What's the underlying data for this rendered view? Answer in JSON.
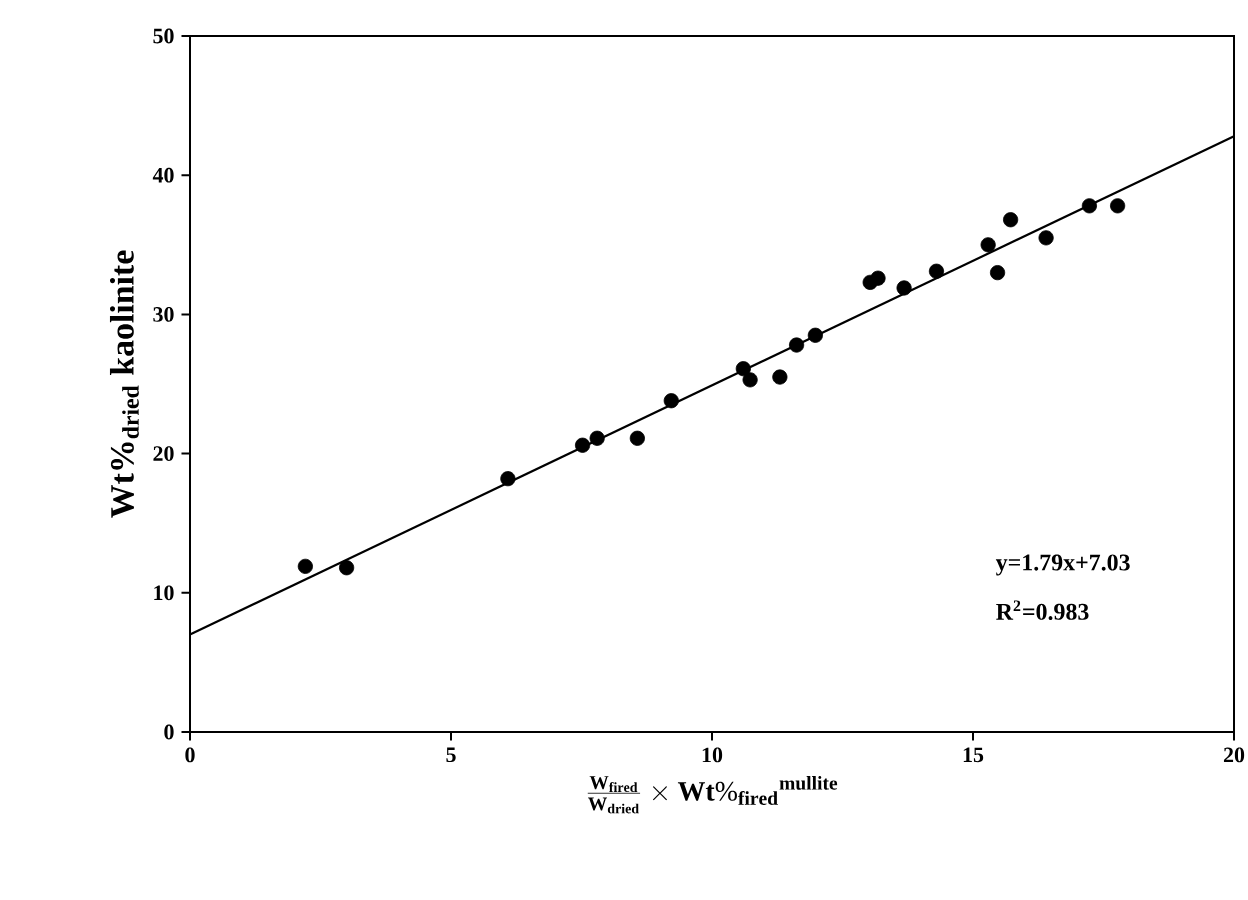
{
  "chart_data": {
    "type": "scatter",
    "xlabel": "\\frac{\\mathbf{W_{fired}}}{\\mathbf{W_{dried}}}\\times\\mathbf{Wt\\%_{fired}}^{\\mathbf{mullite}}",
    "ylabel": "Wt%$_{dried}$ kaolinite",
    "xlim": [
      0,
      20
    ],
    "ylim": [
      0,
      50
    ],
    "xticks": [
      0,
      5,
      10,
      15,
      20
    ],
    "yticks": [
      0,
      10,
      20,
      30,
      40,
      50
    ],
    "grid": false,
    "annotations": [
      "y=1.79x+7.03",
      "R$^{2}$=0.983"
    ],
    "series": [
      {
        "color": "#000000",
        "marker": "circle",
        "x": [
          2.21,
          3.0,
          6.09,
          7.52,
          7.8,
          8.57,
          9.22,
          10.6,
          10.73,
          11.3,
          11.62,
          11.98,
          13.03,
          13.18,
          13.68,
          14.3,
          15.29,
          15.47,
          15.72,
          16.4,
          17.23,
          17.77
        ],
        "values": [
          11.9,
          11.8,
          18.2,
          20.6,
          21.1,
          21.1,
          23.8,
          26.1,
          25.3,
          25.5,
          27.8,
          28.5,
          32.3,
          32.6,
          31.9,
          33.1,
          35.0,
          33.0,
          36.8,
          35.5,
          37.8,
          37.8
        ]
      },
      {
        "type": "line",
        "color": "#000000",
        "x": [
          0,
          20
        ],
        "values": [
          7.0,
          42.8
        ]
      }
    ]
  }
}
